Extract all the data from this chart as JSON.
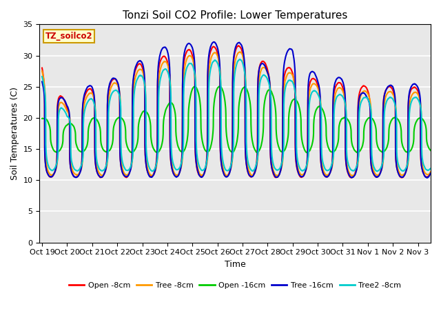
{
  "title": "Tonzi Soil CO2 Profile: Lower Temperatures",
  "xlabel": "Time",
  "ylabel": "Soil Temperatures (C)",
  "dataset_label": "TZ_soilco2",
  "ylim": [
    0,
    35
  ],
  "yticks": [
    0,
    5,
    10,
    15,
    20,
    25,
    30,
    35
  ],
  "xtick_labels": [
    "Oct 19",
    "Oct 20",
    "Oct 21",
    "Oct 22",
    "Oct 23",
    "Oct 24",
    "Oct 25",
    "Oct 26",
    "Oct 27",
    "Oct 28",
    "Oct 29",
    "Oct 30",
    "Oct 31",
    "Nov 1",
    "Nov 2",
    "Nov 3"
  ],
  "series": [
    {
      "name": "Open -8cm",
      "color": "#ff0000",
      "lw": 1.5
    },
    {
      "name": "Tree -8cm",
      "color": "#ff9900",
      "lw": 1.5
    },
    {
      "name": "Open -16cm",
      "color": "#00cc00",
      "lw": 1.5
    },
    {
      "name": "Tree -16cm",
      "color": "#0000cc",
      "lw": 1.5
    },
    {
      "name": "Tree2 -8cm",
      "color": "#00cccc",
      "lw": 1.5
    }
  ],
  "plot_bg_color": "#e8e8e8",
  "grid_color": "#ffffff",
  "title_fontsize": 11,
  "axis_label_fontsize": 9,
  "tick_fontsize": 8,
  "label_color": "#cc0000",
  "label_bg": "#ffffcc",
  "label_edge": "#cc9900"
}
